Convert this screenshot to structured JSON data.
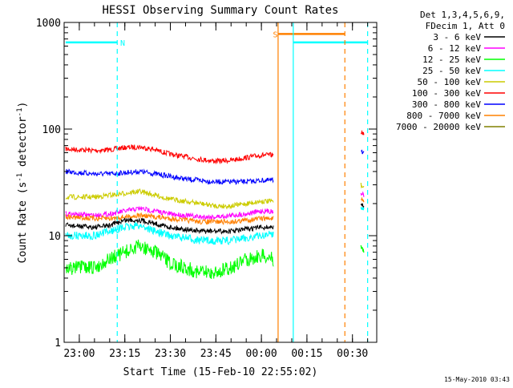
{
  "chart_data": {
    "type": "line",
    "title": "HESSI Observing Summary Count Rates",
    "xlabel": "Start Time (15-Feb-10 22:55:02)",
    "ylabel_parts": [
      "Count Rate (s",
      "-1",
      " detector",
      "-1",
      ")"
    ],
    "footer": "15-May-2010 03:43",
    "log_y": true,
    "grid": false,
    "xlim": [
      55,
      158
    ],
    "ylim": [
      1,
      1000
    ],
    "x_unit": "minutes after 22:00 (15-Feb-10)",
    "x_ticks": [
      {
        "t": 60,
        "label": "23:00"
      },
      {
        "t": 75,
        "label": "23:15"
      },
      {
        "t": 90,
        "label": "23:30"
      },
      {
        "t": 105,
        "label": "23:45"
      },
      {
        "t": 120,
        "label": "00:00"
      },
      {
        "t": 135,
        "label": "00:15"
      },
      {
        "t": 150,
        "label": "00:30"
      }
    ],
    "y_ticks": [
      {
        "v": 1,
        "label": "1"
      },
      {
        "v": 10,
        "label": "10"
      },
      {
        "v": 100,
        "label": "100"
      },
      {
        "v": 1000,
        "label": "1000"
      }
    ],
    "legend": {
      "placement": "right",
      "header": [
        "Det 1,3,4,5,6,9,",
        "FDecim 1, Att 0"
      ],
      "entries": [
        {
          "label": "3 - 6 keV",
          "color": "#000000"
        },
        {
          "label": "6 - 12 keV",
          "color": "#ff00ff"
        },
        {
          "label": "12 - 25 keV",
          "color": "#00ff00"
        },
        {
          "label": "25 - 50 keV",
          "color": "#00ffff"
        },
        {
          "label": "50 - 100 keV",
          "color": "#cccc00"
        },
        {
          "label": "100 - 300 keV",
          "color": "#ff0000"
        },
        {
          "label": "300 - 800 keV",
          "color": "#0000ff"
        },
        {
          "label": "800 - 7000 keV",
          "color": "#ff8000"
        },
        {
          "label": "7000 - 20000 keV",
          "color": "#808000"
        }
      ]
    },
    "series": [
      {
        "color": "#ff0000",
        "x": [
          55.5,
          65,
          70,
          75,
          80,
          85,
          90,
          95,
          100,
          105,
          110,
          115,
          120,
          124
        ],
        "y": [
          65,
          63,
          64,
          67,
          68,
          64,
          58,
          55,
          52,
          50,
          51,
          54,
          57,
          57
        ]
      },
      {
        "color": "#0000ff",
        "x": [
          55.5,
          65,
          70,
          75,
          80,
          85,
          90,
          95,
          100,
          105,
          110,
          115,
          120,
          124
        ],
        "y": [
          40,
          38,
          38,
          39,
          40,
          38,
          36,
          34,
          33,
          32,
          32,
          32,
          33,
          33
        ]
      },
      {
        "color": "#cccc00",
        "x": [
          55.5,
          65,
          70,
          75,
          80,
          85,
          90,
          95,
          100,
          105,
          110,
          115,
          120,
          124
        ],
        "y": [
          23,
          23,
          24,
          25,
          26,
          24,
          22,
          21,
          20,
          19,
          19,
          20,
          21,
          21
        ]
      },
      {
        "color": "#ff00ff",
        "x": [
          55.5,
          65,
          70,
          75,
          80,
          85,
          90,
          95,
          100,
          105,
          110,
          115,
          120,
          124
        ],
        "y": [
          16,
          15.5,
          16,
          17,
          18,
          17,
          16,
          15.5,
          15,
          15,
          15.5,
          16,
          17,
          17
        ]
      },
      {
        "color": "#ff8000",
        "x": [
          55.5,
          65,
          70,
          75,
          80,
          85,
          90,
          95,
          100,
          105,
          110,
          115,
          120,
          124
        ],
        "y": [
          15,
          14.5,
          14.5,
          15,
          15.5,
          15,
          14.5,
          14,
          13.5,
          13.5,
          13.5,
          14,
          14.5,
          14.5
        ]
      },
      {
        "color": "#000000",
        "x": [
          55.5,
          65,
          70,
          75,
          80,
          85,
          90,
          95,
          100,
          105,
          110,
          115,
          120,
          124
        ],
        "y": [
          12.5,
          12,
          12.5,
          14,
          14,
          13,
          12,
          11.5,
          11,
          11,
          11,
          11.5,
          12,
          12
        ]
      },
      {
        "color": "#00ffff",
        "x": [
          55.5,
          65,
          70,
          75,
          80,
          85,
          90,
          95,
          100,
          105,
          110,
          115,
          120,
          124
        ],
        "y": [
          10,
          10,
          11,
          12,
          12.5,
          11,
          10,
          9.5,
          9,
          9,
          9,
          9.5,
          10,
          10.5
        ]
      },
      {
        "color": "#00ff00",
        "x": [
          55.5,
          65,
          70,
          75,
          80,
          85,
          90,
          95,
          100,
          105,
          110,
          115,
          120,
          124
        ],
        "y": [
          5,
          5,
          6,
          7,
          8,
          7,
          5.5,
          5,
          4.5,
          4.5,
          5,
          6,
          6.5,
          6
        ]
      }
    ],
    "late_fragments": [
      {
        "color": "#ff0000",
        "x": [
          152.8,
          153.8
        ],
        "y": [
          95,
          90
        ]
      },
      {
        "color": "#0000ff",
        "x": [
          152.8,
          153.8
        ],
        "y": [
          62,
          60
        ]
      },
      {
        "color": "#cccc00",
        "x": [
          152.8,
          153.8
        ],
        "y": [
          30,
          28
        ]
      },
      {
        "color": "#ff00ff",
        "x": [
          152.8,
          153.8
        ],
        "y": [
          25,
          24
        ]
      },
      {
        "color": "#ff8000",
        "x": [
          152.8,
          153.8
        ],
        "y": [
          22,
          21
        ]
      },
      {
        "color": "#000000",
        "x": [
          152.8,
          153.8
        ],
        "y": [
          20,
          19
        ]
      },
      {
        "color": "#00ffff",
        "x": [
          152.8,
          153.8
        ],
        "y": [
          18,
          18
        ]
      },
      {
        "color": "#00ff00",
        "x": [
          152.8,
          153.8
        ],
        "y": [
          8,
          7
        ]
      }
    ],
    "events": {
      "night_bars": [
        {
          "color": "#00ffff",
          "x_start": 55.5,
          "x_end": 72.5,
          "y": 650
        },
        {
          "color": "#00ffff",
          "x_start": 130.5,
          "x_end": 155.0,
          "y": 650
        }
      ],
      "saa_bar": {
        "color": "#ff8000",
        "x_start": 125.5,
        "x_end": 147.5,
        "y": 780
      },
      "solid_lines": [
        {
          "color": "#ff8000",
          "t": 125.5
        },
        {
          "color": "#00ffff",
          "t": 130.5
        }
      ],
      "dashed_lines": [
        {
          "color": "#00ffff",
          "t": 72.5
        },
        {
          "color": "#ff8000",
          "t": 147.5
        },
        {
          "color": "#00ffff",
          "t": 155.0
        }
      ],
      "markers": [
        {
          "label": "N",
          "color": "#00ffff",
          "t": 73.5,
          "v": 650
        },
        {
          "label": "S",
          "color": "#ff8000",
          "t": 123.8,
          "v": 780
        }
      ]
    }
  }
}
